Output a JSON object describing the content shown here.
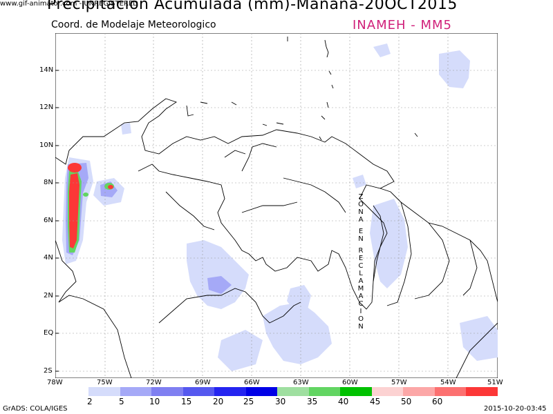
{
  "watermark": "www.gif-animator.com - UNREGISTERED",
  "title": "Precipitacion Acumulada (mm)-Manana-20OCT2015",
  "subtitle": "Coord. de Modelaje Meteorologico",
  "agency": "INAMEH  - MM5",
  "credit": "GrADS: COLA/IGES",
  "timestamp": "2015-10-20-03:45",
  "zone_label": [
    "Z",
    "O",
    "N",
    "A",
    "",
    "E",
    "N",
    "",
    "R",
    "E",
    "C",
    "L",
    "A",
    "M",
    "A",
    "C",
    "I",
    "O",
    "N"
  ],
  "axes": {
    "y_ticks": [
      "14N",
      "12N",
      "10N",
      "8N",
      "6N",
      "4N",
      "2N",
      "EQ",
      "2S"
    ],
    "x_ticks": [
      "78W",
      "75W",
      "72W",
      "69W",
      "66W",
      "63W",
      "60W",
      "57W",
      "54W",
      "51W"
    ]
  },
  "legend": {
    "labels": [
      "2",
      "5",
      "10",
      "15",
      "20",
      "25",
      "30",
      "35",
      "40",
      "45",
      "50",
      "60"
    ],
    "colors": [
      "#d5dcfb",
      "#a5a9f7",
      "#7f7ff1",
      "#5558ef",
      "#2424f0",
      "#0000e6",
      "#9fdfa0",
      "#62d562",
      "#00c100",
      "#fcd2d2",
      "#fca7a7",
      "#fc7070",
      "#fc3737"
    ]
  }
}
